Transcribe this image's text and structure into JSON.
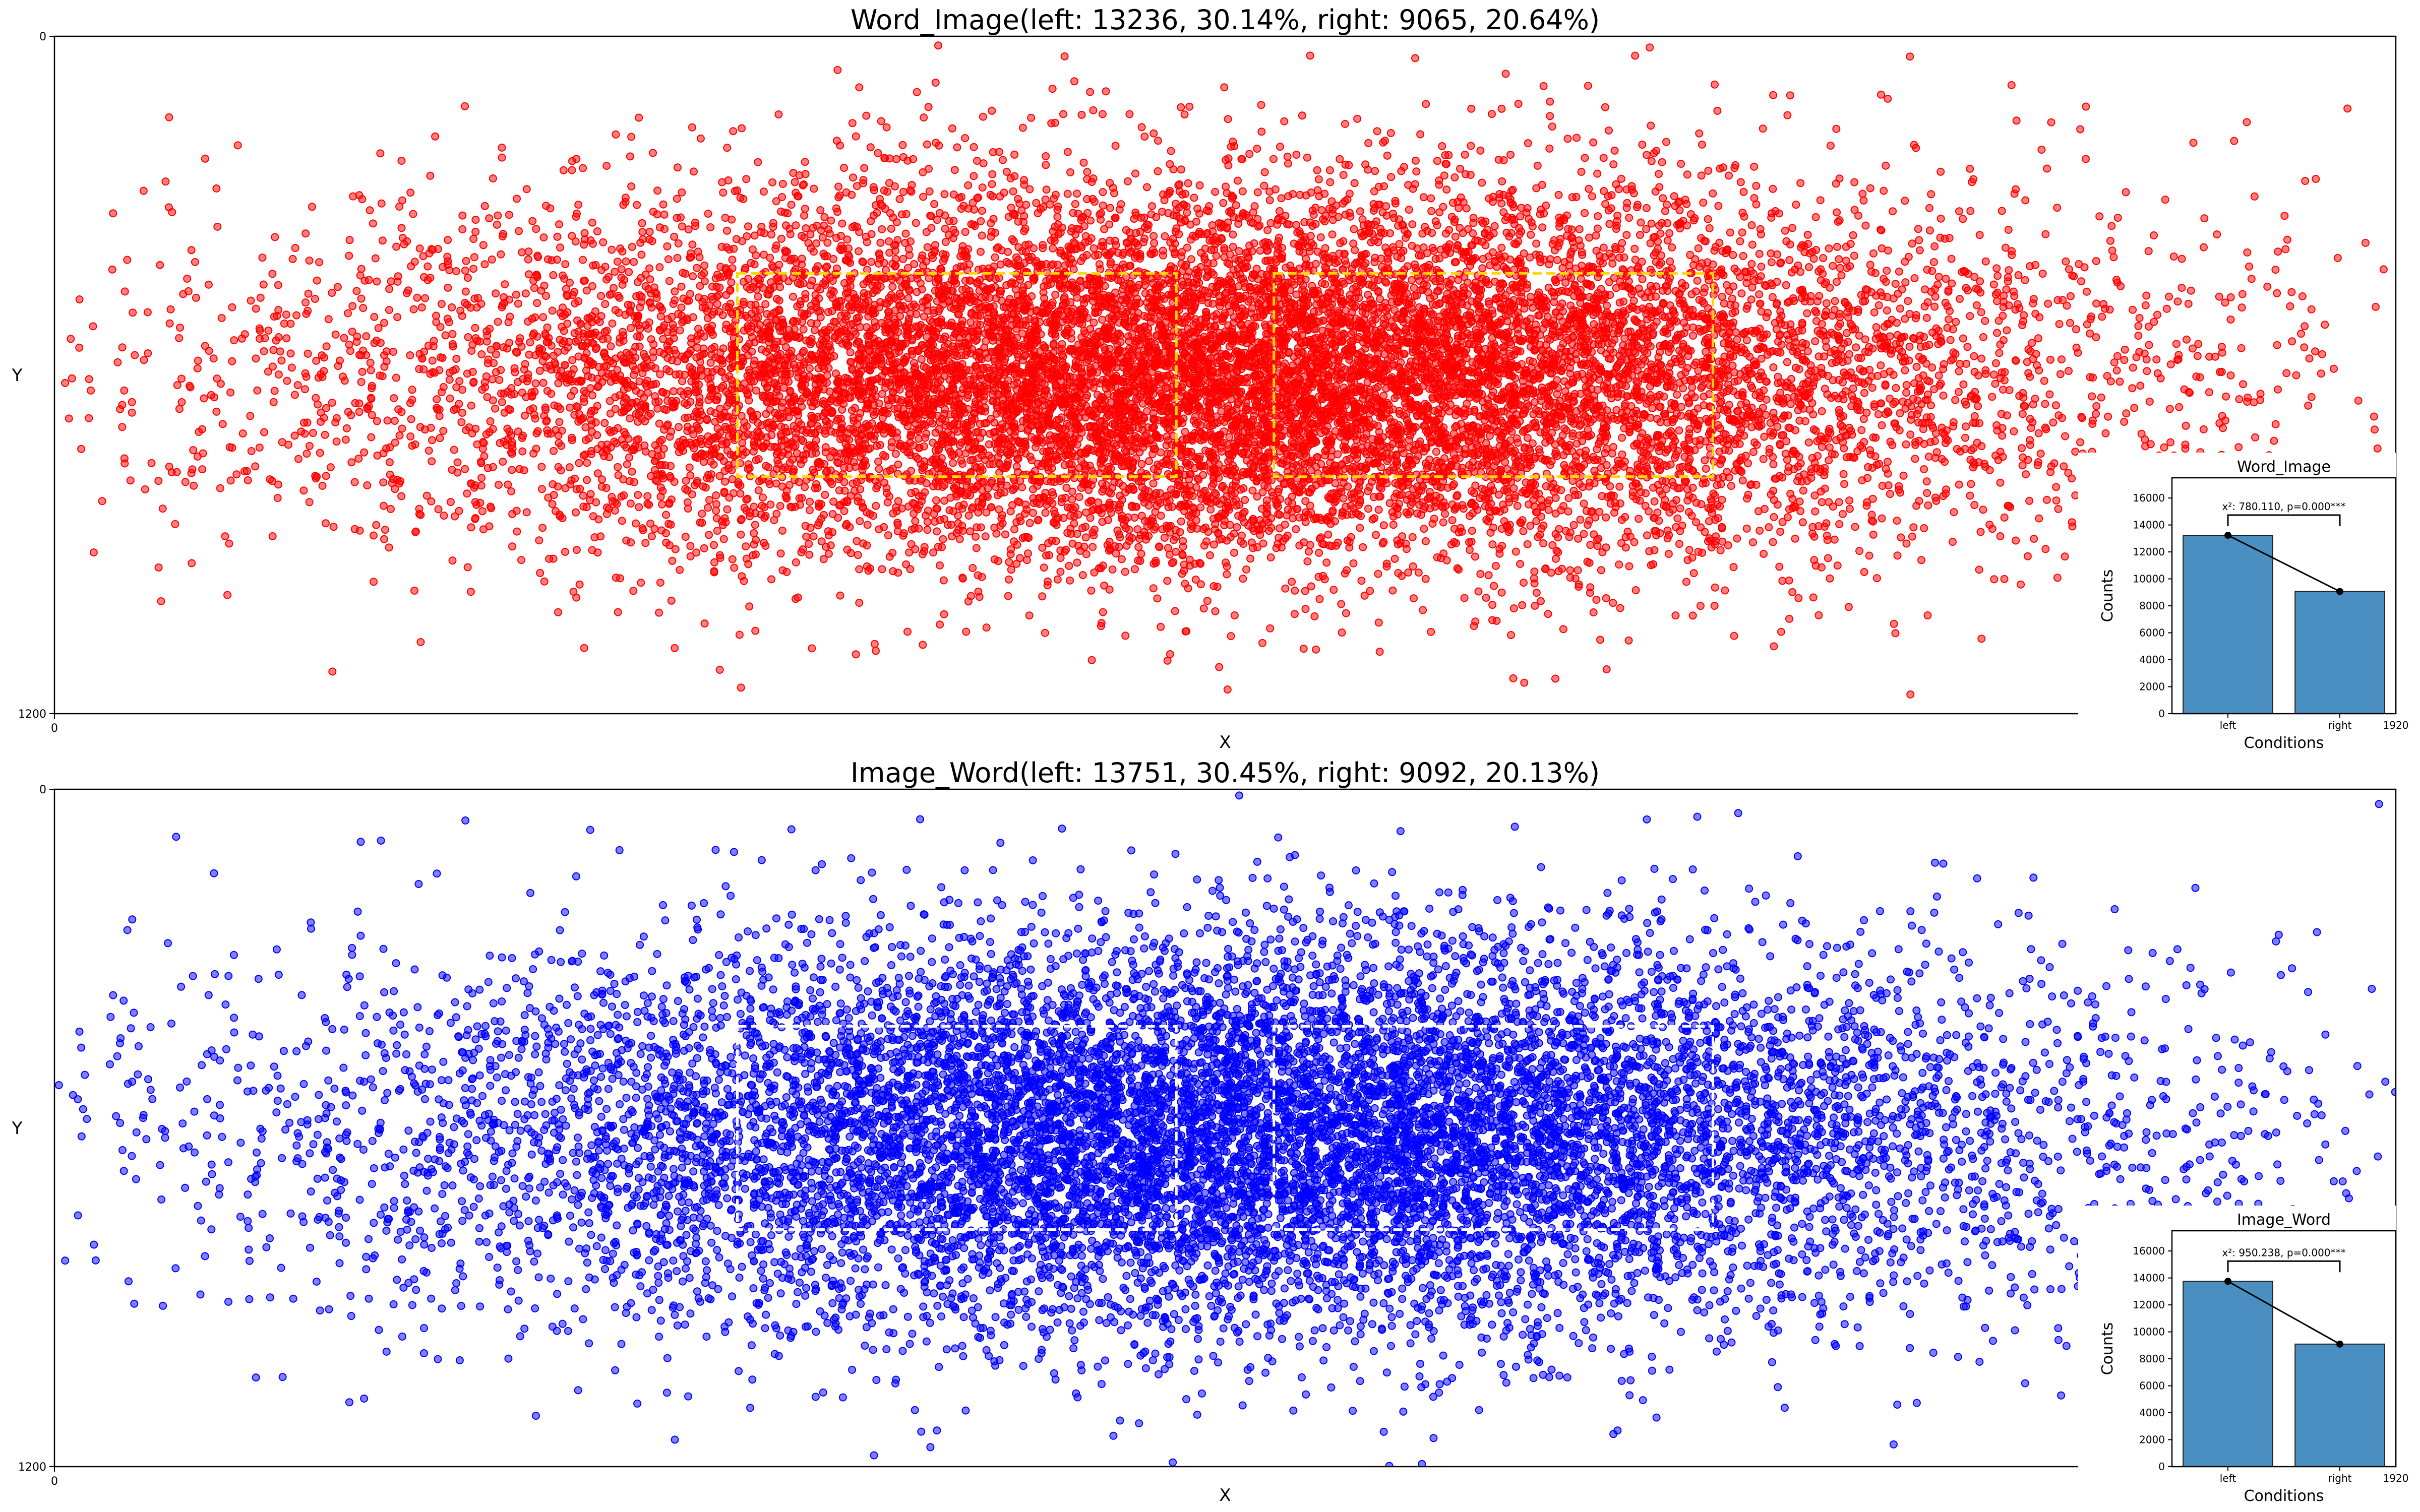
{
  "chart_data": [
    {
      "type": "scatter",
      "title": "Word_Image(left: 13236, 30.14%, right: 9065, 20.64%)",
      "xlabel": "X",
      "ylabel": "Y",
      "xlim": [
        0,
        1920
      ],
      "ylim": [
        1200,
        0
      ],
      "x_tick_labels": [
        "0"
      ],
      "y_tick_labels": [
        "0",
        "1200"
      ],
      "point_color": "#ff0000",
      "point_alpha": 0.5,
      "regions": [
        {
          "label": "left",
          "x": [
            560,
            920
          ],
          "y": [
            420,
            780
          ],
          "color": "#ffd700",
          "style": "dashed"
        },
        {
          "label": "right",
          "x": [
            1000,
            1360
          ],
          "y": [
            420,
            780
          ],
          "color": "#ffd700",
          "style": "dashed"
        }
      ],
      "distribution": {
        "center_x": 960,
        "center_y": 600,
        "spread_x": 340,
        "spread_y": 165,
        "n_plotted": 14000
      },
      "inset": {
        "type": "bar",
        "title": "Word_Image",
        "xlabel": "Conditions",
        "ylabel": "Counts",
        "categories": [
          "left",
          "right"
        ],
        "values": [
          13236,
          9065
        ],
        "ylim": [
          0,
          17500
        ],
        "yticks": [
          0,
          2000,
          4000,
          6000,
          8000,
          10000,
          12000,
          14000,
          16000
        ],
        "bar_color": "#4a8fc2",
        "annotation": "x²: 780.110, p=0.000***",
        "corner_label": "1920"
      }
    },
    {
      "type": "scatter",
      "title": "Image_Word(left: 13751, 30.45%, right: 9092, 20.13%)",
      "xlabel": "X",
      "ylabel": "Y",
      "xlim": [
        0,
        1920
      ],
      "ylim": [
        1200,
        0
      ],
      "x_tick_labels": [
        "0"
      ],
      "y_tick_labels": [
        "0",
        "1200"
      ],
      "point_color": "#0000ff",
      "point_alpha": 0.5,
      "regions": [
        {
          "label": "left",
          "x": [
            560,
            920
          ],
          "y": [
            420,
            780
          ],
          "color": "#ffffff",
          "style": "dashed"
        },
        {
          "label": "right",
          "x": [
            1000,
            1360
          ],
          "y": [
            420,
            780
          ],
          "color": "#ffffff",
          "style": "dashed"
        }
      ],
      "distribution": {
        "center_x": 960,
        "center_y": 610,
        "spread_x": 350,
        "spread_y": 175,
        "n_plotted": 12000
      },
      "inset": {
        "type": "bar",
        "title": "Image_Word",
        "xlabel": "Conditions",
        "ylabel": "Counts",
        "categories": [
          "left",
          "right"
        ],
        "values": [
          13751,
          9092
        ],
        "ylim": [
          0,
          17500
        ],
        "yticks": [
          0,
          2000,
          4000,
          6000,
          8000,
          10000,
          12000,
          14000,
          16000
        ],
        "bar_color": "#4a8fc2",
        "annotation": "x²: 950.238, p=0.000***",
        "corner_label": "1920"
      }
    }
  ]
}
